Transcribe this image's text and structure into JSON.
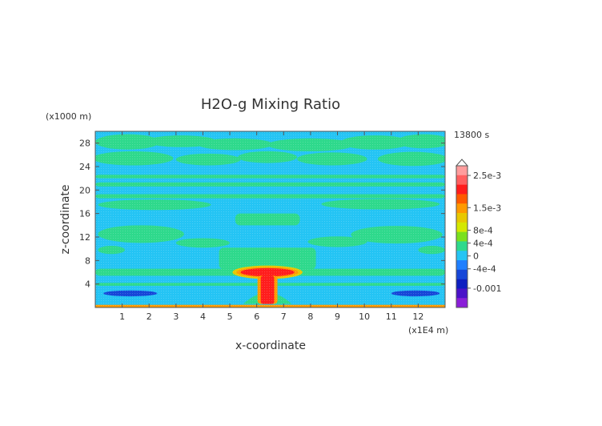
{
  "chart_data": {
    "type": "heatmap",
    "title": "H2O-g Mixing Ratio",
    "xlabel": "x-coordinate",
    "ylabel": "z-coordinate",
    "x_unit": "(x1E4 m)",
    "y_unit": "(x1000 m)",
    "time_label": "13800 s",
    "xlim": [
      0,
      13
    ],
    "ylim": [
      0,
      30
    ],
    "x_ticks": [
      1,
      2,
      3,
      4,
      5,
      6,
      7,
      8,
      9,
      10,
      11,
      12
    ],
    "x_tick_labels": [
      "1",
      "2",
      "3",
      "4",
      "5",
      "6",
      "7",
      "8",
      "9",
      "10",
      "11",
      "12"
    ],
    "y_ticks": [
      4,
      8,
      12,
      16,
      20,
      24,
      28
    ],
    "y_tick_labels": [
      "4",
      "8",
      "12",
      "16",
      "20",
      "24",
      "28"
    ],
    "colorbar": {
      "labels": [
        {
          "value": 0.0025,
          "text": "2.5e-3"
        },
        {
          "value": 0.0015,
          "text": "1.5e-3"
        },
        {
          "value": 0.0008,
          "text": "8e-4"
        },
        {
          "value": 0.0004,
          "text": "4e-4"
        },
        {
          "value": 0,
          "text": "0"
        },
        {
          "value": -0.0004,
          "text": "-4e-4"
        },
        {
          "value": -0.001,
          "text": "-0.001"
        }
      ],
      "levels_top_to_bottom": [
        {
          "color": "#ff9d9d"
        },
        {
          "color": "#ff6060"
        },
        {
          "color": "#ff1d1d"
        },
        {
          "color": "#ff5a00"
        },
        {
          "color": "#ff9a00"
        },
        {
          "color": "#e8c800"
        },
        {
          "color": "#d4e800"
        },
        {
          "color": "#7ae01e"
        },
        {
          "color": "#2ed98c"
        },
        {
          "color": "#24c4f4"
        },
        {
          "color": "#1f7fff"
        },
        {
          "color": "#1646d8"
        },
        {
          "color": "#0d1fc0"
        },
        {
          "color": "#4a12c8"
        },
        {
          "color": "#8a1ed8"
        }
      ]
    },
    "colors": {
      "background": "#24c4f4",
      "band": "#2ed98c",
      "strong_band": "#2ee8a8",
      "blue_spot": "#1f7fff",
      "dark_blue": "#1646d8",
      "plume_core": "#ff1d1d",
      "plume_edge": "#ff9a00",
      "plume_yellow": "#e8c800",
      "surface": "#ff9a00"
    },
    "features": {
      "bands": [
        {
          "x0": 0.0,
          "x1": 13.0,
          "z0": 5.4,
          "z1": 6.6
        },
        {
          "x0": 0.0,
          "x1": 13.0,
          "z0": 3.7,
          "z1": 4.2
        },
        {
          "x0": 4.6,
          "x1": 8.2,
          "z0": 6.5,
          "z1": 10.2
        },
        {
          "x0": 0.0,
          "x1": 13.0,
          "z0": 18.6,
          "z1": 19.3
        },
        {
          "x0": 0.0,
          "x1": 13.0,
          "z0": 20.6,
          "z1": 21.3
        },
        {
          "x0": 0.0,
          "x1": 13.0,
          "z0": 22.0,
          "z1": 22.6
        },
        {
          "x0": 5.2,
          "x1": 7.6,
          "z0": 14.0,
          "z1": 16.0
        }
      ],
      "blobs": [
        {
          "cx": 1.2,
          "cz": 28.2,
          "rx": 1.2,
          "rz": 1.3
        },
        {
          "cx": 3.2,
          "cz": 28.3,
          "rx": 1.3,
          "rz": 1.0
        },
        {
          "cx": 5.2,
          "cz": 27.8,
          "rx": 1.4,
          "rz": 1.0
        },
        {
          "cx": 8.0,
          "cz": 27.7,
          "rx": 1.6,
          "rz": 1.1
        },
        {
          "cx": 10.4,
          "cz": 28.1,
          "rx": 1.3,
          "rz": 1.2
        },
        {
          "cx": 12.2,
          "cz": 28.3,
          "rx": 1.0,
          "rz": 1.2
        },
        {
          "cx": 1.4,
          "cz": 25.4,
          "rx": 1.5,
          "rz": 1.2
        },
        {
          "cx": 4.2,
          "cz": 25.2,
          "rx": 1.2,
          "rz": 1.0
        },
        {
          "cx": 6.4,
          "cz": 25.6,
          "rx": 1.1,
          "rz": 1.0
        },
        {
          "cx": 8.8,
          "cz": 25.3,
          "rx": 1.3,
          "rz": 1.1
        },
        {
          "cx": 11.8,
          "cz": 25.3,
          "rx": 1.3,
          "rz": 1.2
        },
        {
          "cx": 2.2,
          "cz": 17.5,
          "rx": 2.1,
          "rz": 0.9
        },
        {
          "cx": 10.6,
          "cz": 17.6,
          "rx": 2.2,
          "rz": 0.9
        },
        {
          "cx": 1.7,
          "cz": 12.5,
          "rx": 1.6,
          "rz": 1.5
        },
        {
          "cx": 11.2,
          "cz": 12.4,
          "rx": 1.7,
          "rz": 1.5
        },
        {
          "cx": 4.0,
          "cz": 11.0,
          "rx": 1.0,
          "rz": 0.8
        },
        {
          "cx": 9.0,
          "cz": 11.2,
          "rx": 1.1,
          "rz": 0.9
        },
        {
          "cx": 0.6,
          "cz": 9.8,
          "rx": 0.5,
          "rz": 0.7
        },
        {
          "cx": 12.5,
          "cz": 9.8,
          "rx": 0.5,
          "rz": 0.7
        }
      ],
      "dark_lenses": [
        {
          "cx": 1.3,
          "cz": 2.4,
          "rx": 1.0,
          "rz": 0.5
        },
        {
          "cx": 11.9,
          "cz": 2.4,
          "rx": 0.9,
          "rz": 0.5
        }
      ],
      "plume": {
        "x": 6.4,
        "cap_cz": 6.0,
        "cap_rx": 1.0,
        "cap_rz": 0.7,
        "stem_top": 5.4,
        "stem_bottom": 0.6,
        "stem_rx": 0.25
      },
      "surface_layer": {
        "z0": 0.0,
        "z1": 0.45
      }
    }
  }
}
